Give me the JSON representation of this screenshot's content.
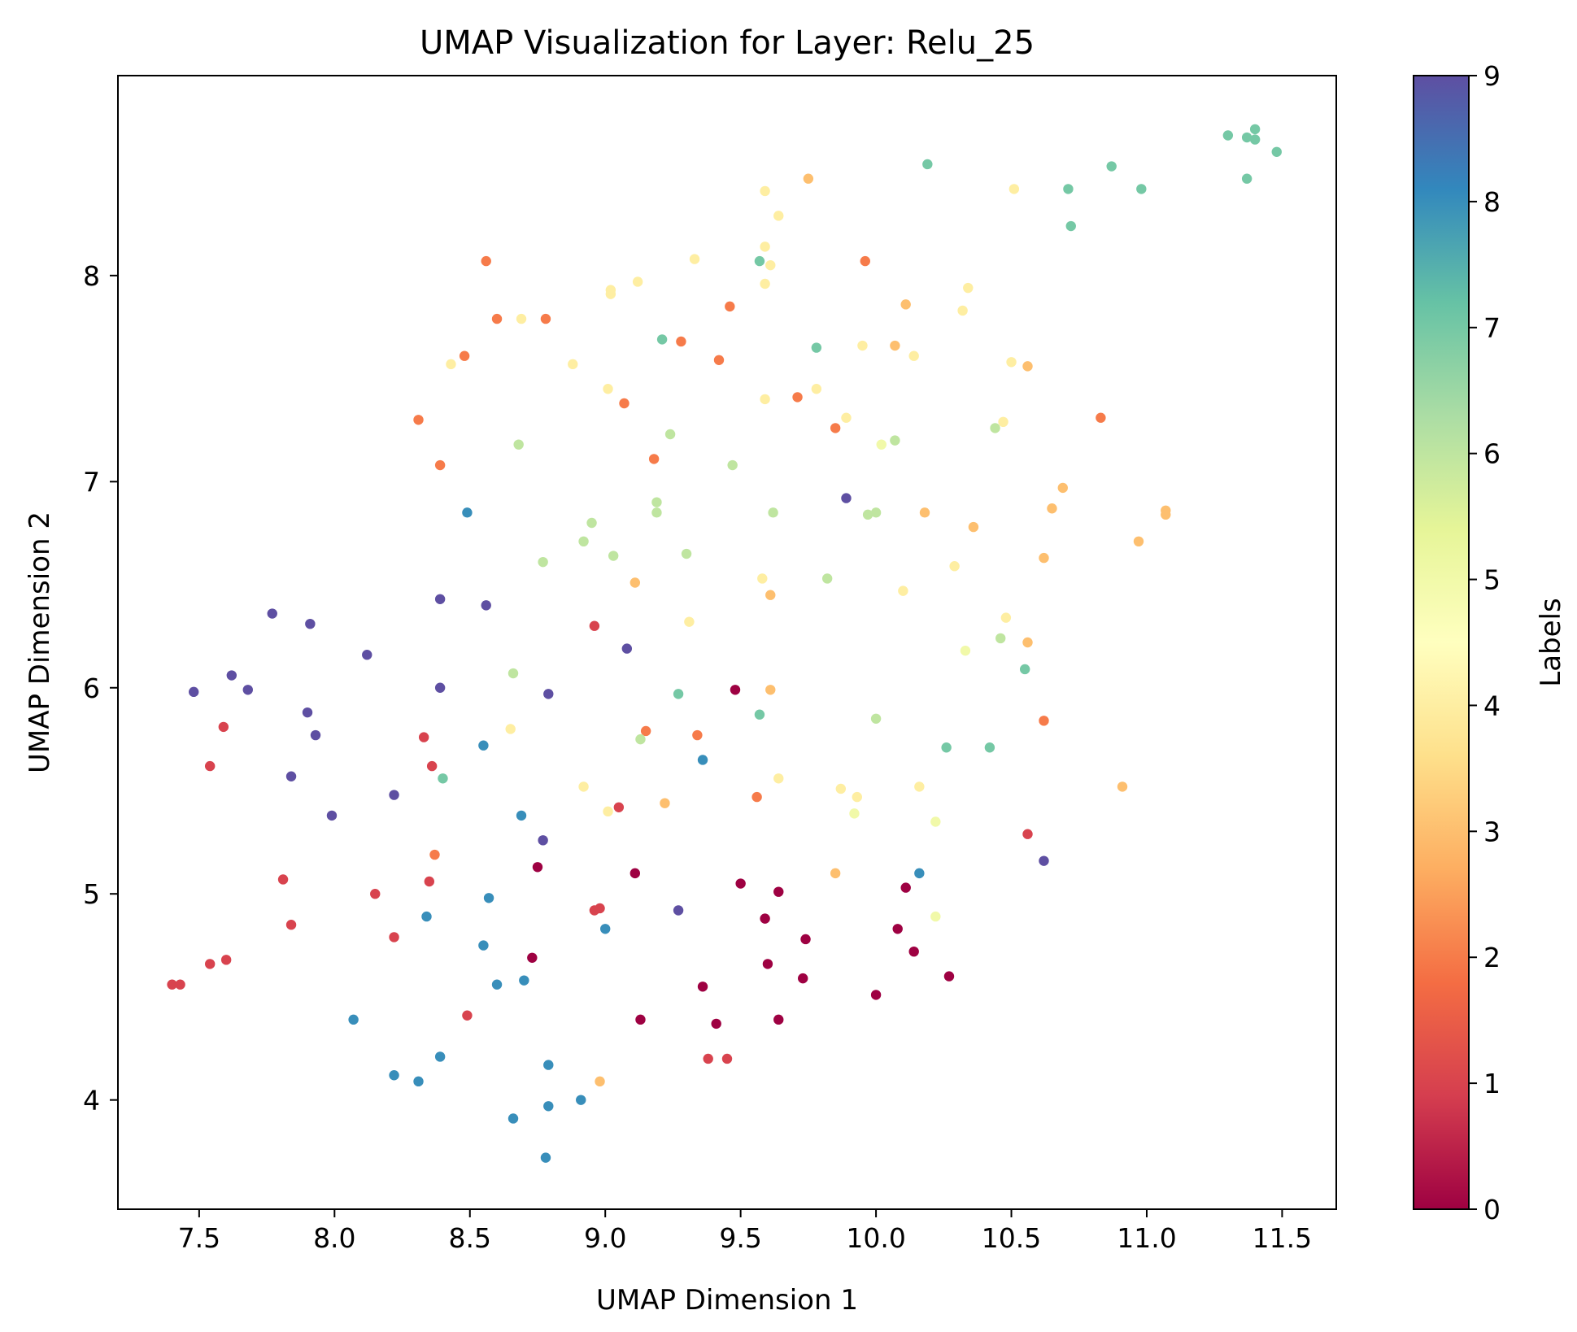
{
  "chart_data": {
    "type": "scatter",
    "title": "UMAP Visualization for Layer: Relu_25",
    "xlabel": "UMAP Dimension 1",
    "ylabel": "UMAP Dimension 2",
    "xlim": [
      7.2,
      11.7
    ],
    "ylim": [
      3.47,
      8.97
    ],
    "xticks": [
      7.5,
      8.0,
      8.5,
      9.0,
      9.5,
      10.0,
      10.5,
      11.0,
      11.5
    ],
    "xtick_labels": [
      "7.5",
      "8.0",
      "8.5",
      "9.0",
      "9.5",
      "10.0",
      "10.5",
      "11.0",
      "11.5"
    ],
    "yticks": [
      4,
      5,
      6,
      7,
      8
    ],
    "ytick_labels": [
      "4",
      "5",
      "6",
      "7",
      "8"
    ],
    "grid": false,
    "colormap": "Spectral",
    "colorbar": {
      "label": "Labels",
      "range": [
        0,
        9
      ],
      "ticks": [
        0,
        1,
        2,
        3,
        4,
        5,
        6,
        7,
        8,
        9
      ],
      "tick_labels": [
        "0",
        "1",
        "2",
        "3",
        "4",
        "5",
        "6",
        "7",
        "8",
        "9"
      ],
      "colors": [
        "#9e0142",
        "#d53e4f",
        "#f46d43",
        "#fdae61",
        "#fee08b",
        "#ffffbf",
        "#e6f598",
        "#abdda4",
        "#66c2a5",
        "#3288bd",
        "#5e4fa2"
      ]
    },
    "points": [
      {
        "x": 9.48,
        "y": 5.99,
        "label": 0
      },
      {
        "x": 9.11,
        "y": 5.1,
        "label": 0
      },
      {
        "x": 8.75,
        "y": 5.13,
        "label": 0
      },
      {
        "x": 9.5,
        "y": 5.05,
        "label": 0
      },
      {
        "x": 9.64,
        "y": 5.01,
        "label": 0
      },
      {
        "x": 9.59,
        "y": 4.88,
        "label": 0
      },
      {
        "x": 10.11,
        "y": 5.03,
        "label": 0
      },
      {
        "x": 10.08,
        "y": 4.83,
        "label": 0
      },
      {
        "x": 9.74,
        "y": 4.78,
        "label": 0
      },
      {
        "x": 10.14,
        "y": 4.72,
        "label": 0
      },
      {
        "x": 8.73,
        "y": 4.69,
        "label": 0
      },
      {
        "x": 9.6,
        "y": 4.66,
        "label": 0
      },
      {
        "x": 9.73,
        "y": 4.59,
        "label": 0
      },
      {
        "x": 10.27,
        "y": 4.6,
        "label": 0
      },
      {
        "x": 9.36,
        "y": 4.55,
        "label": 0
      },
      {
        "x": 10.0,
        "y": 4.51,
        "label": 0
      },
      {
        "x": 9.13,
        "y": 4.39,
        "label": 0
      },
      {
        "x": 9.41,
        "y": 4.37,
        "label": 0
      },
      {
        "x": 9.64,
        "y": 4.39,
        "label": 0
      },
      {
        "x": 7.59,
        "y": 5.81,
        "label": 1
      },
      {
        "x": 7.54,
        "y": 5.62,
        "label": 1
      },
      {
        "x": 8.33,
        "y": 5.76,
        "label": 1
      },
      {
        "x": 8.36,
        "y": 5.62,
        "label": 1
      },
      {
        "x": 8.96,
        "y": 6.3,
        "label": 1
      },
      {
        "x": 9.05,
        "y": 5.42,
        "label": 1
      },
      {
        "x": 7.81,
        "y": 5.07,
        "label": 1
      },
      {
        "x": 8.15,
        "y": 5.0,
        "label": 1
      },
      {
        "x": 8.35,
        "y": 5.06,
        "label": 1
      },
      {
        "x": 7.84,
        "y": 4.85,
        "label": 1
      },
      {
        "x": 8.22,
        "y": 4.79,
        "label": 1
      },
      {
        "x": 8.96,
        "y": 4.92,
        "label": 1
      },
      {
        "x": 8.98,
        "y": 4.93,
        "label": 1
      },
      {
        "x": 7.6,
        "y": 4.68,
        "label": 1
      },
      {
        "x": 7.54,
        "y": 4.66,
        "label": 1
      },
      {
        "x": 7.4,
        "y": 4.56,
        "label": 1
      },
      {
        "x": 7.43,
        "y": 4.56,
        "label": 1
      },
      {
        "x": 8.49,
        "y": 4.41,
        "label": 1
      },
      {
        "x": 9.38,
        "y": 4.2,
        "label": 1
      },
      {
        "x": 9.45,
        "y": 4.2,
        "label": 1
      },
      {
        "x": 10.56,
        "y": 5.29,
        "label": 1
      },
      {
        "x": 8.56,
        "y": 8.07,
        "label": 2
      },
      {
        "x": 8.6,
        "y": 7.79,
        "label": 2
      },
      {
        "x": 8.78,
        "y": 7.79,
        "label": 2
      },
      {
        "x": 8.48,
        "y": 7.61,
        "label": 2
      },
      {
        "x": 8.31,
        "y": 7.3,
        "label": 2
      },
      {
        "x": 8.39,
        "y": 7.08,
        "label": 2
      },
      {
        "x": 9.07,
        "y": 7.38,
        "label": 2
      },
      {
        "x": 9.18,
        "y": 7.11,
        "label": 2
      },
      {
        "x": 9.28,
        "y": 7.68,
        "label": 2
      },
      {
        "x": 9.42,
        "y": 7.59,
        "label": 2
      },
      {
        "x": 9.46,
        "y": 7.85,
        "label": 2
      },
      {
        "x": 9.71,
        "y": 7.41,
        "label": 2
      },
      {
        "x": 9.85,
        "y": 7.26,
        "label": 2
      },
      {
        "x": 9.96,
        "y": 8.07,
        "label": 2
      },
      {
        "x": 10.83,
        "y": 7.31,
        "label": 2
      },
      {
        "x": 10.62,
        "y": 5.84,
        "label": 2
      },
      {
        "x": 9.15,
        "y": 5.79,
        "label": 2
      },
      {
        "x": 9.34,
        "y": 5.77,
        "label": 2
      },
      {
        "x": 9.56,
        "y": 5.47,
        "label": 2
      },
      {
        "x": 8.37,
        "y": 5.19,
        "label": 2
      },
      {
        "x": 9.75,
        "y": 8.47,
        "label": 3
      },
      {
        "x": 10.11,
        "y": 7.86,
        "label": 3
      },
      {
        "x": 10.07,
        "y": 7.66,
        "label": 3
      },
      {
        "x": 10.56,
        "y": 7.56,
        "label": 3
      },
      {
        "x": 10.69,
        "y": 6.97,
        "label": 3
      },
      {
        "x": 10.65,
        "y": 6.87,
        "label": 3
      },
      {
        "x": 10.18,
        "y": 6.85,
        "label": 3
      },
      {
        "x": 10.36,
        "y": 6.78,
        "label": 3
      },
      {
        "x": 11.07,
        "y": 6.86,
        "label": 3
      },
      {
        "x": 11.07,
        "y": 6.84,
        "label": 3
      },
      {
        "x": 10.97,
        "y": 6.71,
        "label": 3
      },
      {
        "x": 10.62,
        "y": 6.63,
        "label": 3
      },
      {
        "x": 9.11,
        "y": 6.51,
        "label": 3
      },
      {
        "x": 9.61,
        "y": 6.45,
        "label": 3
      },
      {
        "x": 10.56,
        "y": 6.22,
        "label": 3
      },
      {
        "x": 9.61,
        "y": 5.99,
        "label": 3
      },
      {
        "x": 10.91,
        "y": 5.52,
        "label": 3
      },
      {
        "x": 9.22,
        "y": 5.44,
        "label": 3
      },
      {
        "x": 9.85,
        "y": 5.1,
        "label": 3
      },
      {
        "x": 8.98,
        "y": 4.09,
        "label": 3
      },
      {
        "x": 9.59,
        "y": 8.41,
        "label": 4
      },
      {
        "x": 9.64,
        "y": 8.29,
        "label": 4
      },
      {
        "x": 9.59,
        "y": 8.14,
        "label": 4
      },
      {
        "x": 9.61,
        "y": 8.05,
        "label": 4
      },
      {
        "x": 9.59,
        "y": 7.96,
        "label": 4
      },
      {
        "x": 9.33,
        "y": 8.08,
        "label": 4
      },
      {
        "x": 9.12,
        "y": 7.97,
        "label": 4
      },
      {
        "x": 9.02,
        "y": 7.93,
        "label": 4
      },
      {
        "x": 9.02,
        "y": 7.91,
        "label": 4
      },
      {
        "x": 8.69,
        "y": 7.79,
        "label": 4
      },
      {
        "x": 8.88,
        "y": 7.57,
        "label": 4
      },
      {
        "x": 8.43,
        "y": 7.57,
        "label": 4
      },
      {
        "x": 9.01,
        "y": 7.45,
        "label": 4
      },
      {
        "x": 9.59,
        "y": 7.4,
        "label": 4
      },
      {
        "x": 9.78,
        "y": 7.45,
        "label": 4
      },
      {
        "x": 9.89,
        "y": 7.31,
        "label": 4
      },
      {
        "x": 9.95,
        "y": 7.66,
        "label": 4
      },
      {
        "x": 10.14,
        "y": 7.61,
        "label": 4
      },
      {
        "x": 10.34,
        "y": 7.94,
        "label": 4
      },
      {
        "x": 10.32,
        "y": 7.83,
        "label": 4
      },
      {
        "x": 10.51,
        "y": 8.42,
        "label": 4
      },
      {
        "x": 10.5,
        "y": 7.58,
        "label": 4
      },
      {
        "x": 10.47,
        "y": 7.29,
        "label": 4
      },
      {
        "x": 10.29,
        "y": 6.59,
        "label": 4
      },
      {
        "x": 10.1,
        "y": 6.47,
        "label": 4
      },
      {
        "x": 9.58,
        "y": 6.53,
        "label": 4
      },
      {
        "x": 9.31,
        "y": 6.32,
        "label": 4
      },
      {
        "x": 10.48,
        "y": 6.34,
        "label": 4
      },
      {
        "x": 8.65,
        "y": 5.8,
        "label": 4
      },
      {
        "x": 8.92,
        "y": 5.52,
        "label": 4
      },
      {
        "x": 9.64,
        "y": 5.56,
        "label": 4
      },
      {
        "x": 9.87,
        "y": 5.51,
        "label": 4
      },
      {
        "x": 9.93,
        "y": 5.47,
        "label": 4
      },
      {
        "x": 10.16,
        "y": 5.52,
        "label": 4
      },
      {
        "x": 9.01,
        "y": 5.4,
        "label": 4
      },
      {
        "x": 10.02,
        "y": 7.18,
        "label": 5
      },
      {
        "x": 10.33,
        "y": 6.18,
        "label": 5
      },
      {
        "x": 9.92,
        "y": 5.39,
        "label": 5
      },
      {
        "x": 10.22,
        "y": 5.35,
        "label": 5
      },
      {
        "x": 10.22,
        "y": 4.89,
        "label": 5
      },
      {
        "x": 9.24,
        "y": 7.23,
        "label": 6
      },
      {
        "x": 8.68,
        "y": 7.18,
        "label": 6
      },
      {
        "x": 9.47,
        "y": 7.08,
        "label": 6
      },
      {
        "x": 10.07,
        "y": 7.2,
        "label": 6
      },
      {
        "x": 10.44,
        "y": 7.26,
        "label": 6
      },
      {
        "x": 9.19,
        "y": 6.9,
        "label": 6
      },
      {
        "x": 9.19,
        "y": 6.85,
        "label": 6
      },
      {
        "x": 9.62,
        "y": 6.85,
        "label": 6
      },
      {
        "x": 9.97,
        "y": 6.84,
        "label": 6
      },
      {
        "x": 10.0,
        "y": 6.85,
        "label": 6
      },
      {
        "x": 8.95,
        "y": 6.8,
        "label": 6
      },
      {
        "x": 8.92,
        "y": 6.71,
        "label": 6
      },
      {
        "x": 9.03,
        "y": 6.64,
        "label": 6
      },
      {
        "x": 9.3,
        "y": 6.65,
        "label": 6
      },
      {
        "x": 8.77,
        "y": 6.61,
        "label": 6
      },
      {
        "x": 9.82,
        "y": 6.53,
        "label": 6
      },
      {
        "x": 10.46,
        "y": 6.24,
        "label": 6
      },
      {
        "x": 8.66,
        "y": 6.07,
        "label": 6
      },
      {
        "x": 10.0,
        "y": 5.85,
        "label": 6
      },
      {
        "x": 9.13,
        "y": 5.75,
        "label": 6
      },
      {
        "x": 10.19,
        "y": 8.54,
        "label": 7
      },
      {
        "x": 10.71,
        "y": 8.42,
        "label": 7
      },
      {
        "x": 10.72,
        "y": 8.24,
        "label": 7
      },
      {
        "x": 10.87,
        "y": 8.53,
        "label": 7
      },
      {
        "x": 10.98,
        "y": 8.42,
        "label": 7
      },
      {
        "x": 11.3,
        "y": 8.68,
        "label": 7
      },
      {
        "x": 11.37,
        "y": 8.67,
        "label": 7
      },
      {
        "x": 11.4,
        "y": 8.71,
        "label": 7
      },
      {
        "x": 11.4,
        "y": 8.66,
        "label": 7
      },
      {
        "x": 11.37,
        "y": 8.47,
        "label": 7
      },
      {
        "x": 11.48,
        "y": 8.6,
        "label": 7
      },
      {
        "x": 9.57,
        "y": 8.07,
        "label": 7
      },
      {
        "x": 9.21,
        "y": 7.69,
        "label": 7
      },
      {
        "x": 9.78,
        "y": 7.65,
        "label": 7
      },
      {
        "x": 10.55,
        "y": 6.09,
        "label": 7
      },
      {
        "x": 9.27,
        "y": 5.97,
        "label": 7
      },
      {
        "x": 9.57,
        "y": 5.87,
        "label": 7
      },
      {
        "x": 10.26,
        "y": 5.71,
        "label": 7
      },
      {
        "x": 10.42,
        "y": 5.71,
        "label": 7
      },
      {
        "x": 8.4,
        "y": 5.56,
        "label": 7
      },
      {
        "x": 8.49,
        "y": 6.85,
        "label": 8
      },
      {
        "x": 8.55,
        "y": 5.72,
        "label": 8
      },
      {
        "x": 9.36,
        "y": 5.65,
        "label": 8
      },
      {
        "x": 8.69,
        "y": 5.38,
        "label": 8
      },
      {
        "x": 10.16,
        "y": 5.1,
        "label": 8
      },
      {
        "x": 8.57,
        "y": 4.98,
        "label": 8
      },
      {
        "x": 8.34,
        "y": 4.89,
        "label": 8
      },
      {
        "x": 9.0,
        "y": 4.83,
        "label": 8
      },
      {
        "x": 8.55,
        "y": 4.75,
        "label": 8
      },
      {
        "x": 8.6,
        "y": 4.56,
        "label": 8
      },
      {
        "x": 8.7,
        "y": 4.58,
        "label": 8
      },
      {
        "x": 8.07,
        "y": 4.39,
        "label": 8
      },
      {
        "x": 8.39,
        "y": 4.21,
        "label": 8
      },
      {
        "x": 8.79,
        "y": 4.17,
        "label": 8
      },
      {
        "x": 8.22,
        "y": 4.12,
        "label": 8
      },
      {
        "x": 8.31,
        "y": 4.09,
        "label": 8
      },
      {
        "x": 8.91,
        "y": 4.0,
        "label": 8
      },
      {
        "x": 8.79,
        "y": 3.97,
        "label": 8
      },
      {
        "x": 8.66,
        "y": 3.91,
        "label": 8
      },
      {
        "x": 8.78,
        "y": 3.72,
        "label": 8
      },
      {
        "x": 7.77,
        "y": 6.36,
        "label": 9
      },
      {
        "x": 7.91,
        "y": 6.31,
        "label": 9
      },
      {
        "x": 8.39,
        "y": 6.43,
        "label": 9
      },
      {
        "x": 8.56,
        "y": 6.4,
        "label": 9
      },
      {
        "x": 8.12,
        "y": 6.16,
        "label": 9
      },
      {
        "x": 9.08,
        "y": 6.19,
        "label": 9
      },
      {
        "x": 7.62,
        "y": 6.06,
        "label": 9
      },
      {
        "x": 7.48,
        "y": 5.98,
        "label": 9
      },
      {
        "x": 7.68,
        "y": 5.99,
        "label": 9
      },
      {
        "x": 8.39,
        "y": 6.0,
        "label": 9
      },
      {
        "x": 8.79,
        "y": 5.97,
        "label": 9
      },
      {
        "x": 7.9,
        "y": 5.88,
        "label": 9
      },
      {
        "x": 7.93,
        "y": 5.77,
        "label": 9
      },
      {
        "x": 7.84,
        "y": 5.57,
        "label": 9
      },
      {
        "x": 8.22,
        "y": 5.48,
        "label": 9
      },
      {
        "x": 7.99,
        "y": 5.38,
        "label": 9
      },
      {
        "x": 8.77,
        "y": 5.26,
        "label": 9
      },
      {
        "x": 9.89,
        "y": 6.92,
        "label": 9
      },
      {
        "x": 10.62,
        "y": 5.16,
        "label": 9
      },
      {
        "x": 9.27,
        "y": 4.92,
        "label": 9
      }
    ]
  }
}
